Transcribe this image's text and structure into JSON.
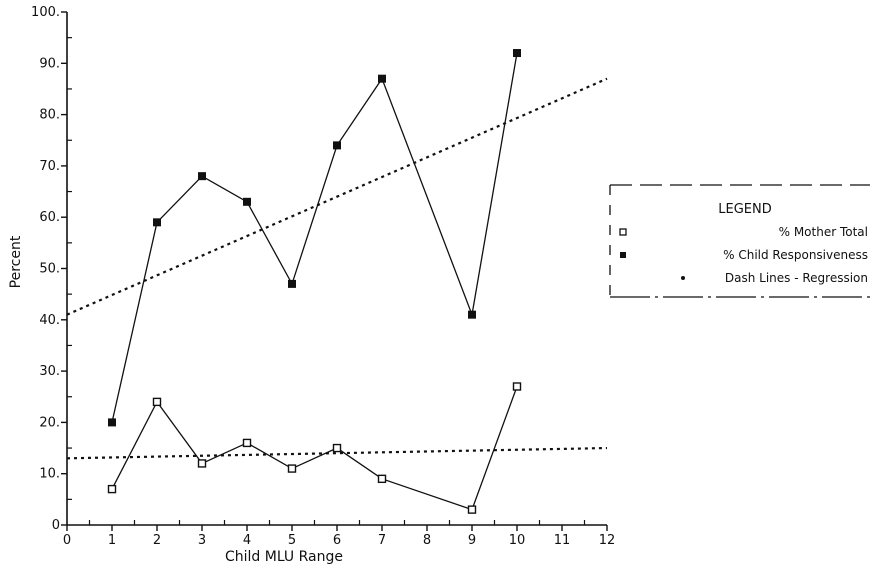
{
  "chart_data": {
    "type": "line",
    "xlabel": "Child MLU Range",
    "ylabel": "Percent",
    "x_ticks": [
      "0",
      "1",
      "2",
      "3",
      "4",
      "5",
      "6",
      "7",
      "8",
      "9",
      "10",
      "11",
      "12"
    ],
    "y_ticks": [
      "0",
      "10.",
      "20.",
      "30.",
      "40.",
      "50.",
      "60.",
      "70.",
      "80.",
      "90.",
      "100."
    ],
    "xlim": [
      0,
      12
    ],
    "ylim": [
      0,
      100
    ],
    "grid": false,
    "legend_position": "right",
    "series": [
      {
        "name": "% Mother Total",
        "x": [
          1,
          2,
          3,
          4,
          5,
          6,
          7,
          9,
          10
        ],
        "y": [
          7,
          24,
          12,
          16,
          11,
          15,
          9,
          3,
          27
        ]
      },
      {
        "name": "% Child Responsiveness",
        "x": [
          1,
          2,
          3,
          4,
          5,
          6,
          7,
          9,
          10
        ],
        "y": [
          20,
          59,
          68,
          63,
          47,
          74,
          87,
          41,
          92
        ]
      }
    ],
    "regression": [
      {
        "series": "% Child Responsiveness",
        "x": [
          0,
          12
        ],
        "y": [
          41,
          87
        ]
      },
      {
        "series": "% Mother Total",
        "x": [
          0,
          12
        ],
        "y": [
          13,
          15
        ]
      }
    ]
  },
  "legend": {
    "title": "LEGEND",
    "items": [
      {
        "label": "% Mother Total",
        "marker": "open-square"
      },
      {
        "label": "% Child Responsiveness",
        "marker": "filled-square"
      },
      {
        "label": "Dash Lines - Regression",
        "marker": "dot"
      }
    ]
  }
}
